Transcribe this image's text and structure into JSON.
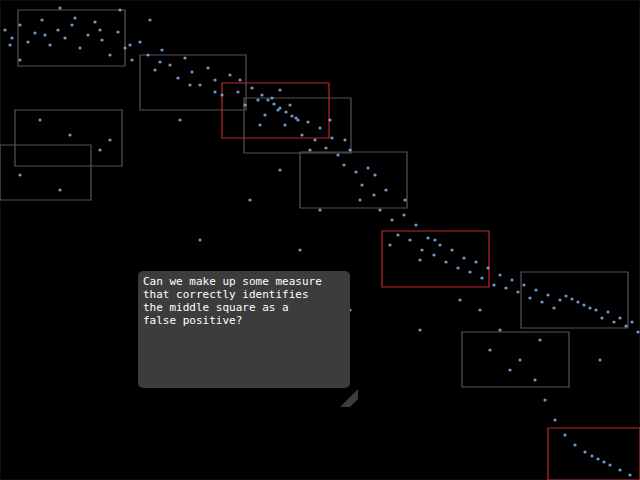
{
  "chart_data": {
    "type": "scatter",
    "annotation": [
      "Can we make up some measure",
      "that correctly identifies",
      "the middle square as a",
      "false positive?"
    ],
    "xlim": [
      0,
      640
    ],
    "ylim": [
      0,
      480
    ],
    "tick_labels": false,
    "grid": false,
    "color": "#7fb4ee",
    "marker": "circle",
    "points": [
      [
        5,
        30
      ],
      [
        12,
        38
      ],
      [
        20,
        25
      ],
      [
        28,
        42
      ],
      [
        35,
        33
      ],
      [
        42,
        20
      ],
      [
        50,
        45
      ],
      [
        58,
        30
      ],
      [
        65,
        38
      ],
      [
        72,
        25
      ],
      [
        80,
        48
      ],
      [
        88,
        35
      ],
      [
        95,
        22
      ],
      [
        102,
        40
      ],
      [
        110,
        55
      ],
      [
        118,
        32
      ],
      [
        125,
        48
      ],
      [
        132,
        60
      ],
      [
        140,
        42
      ],
      [
        148,
        55
      ],
      [
        155,
        70
      ],
      [
        162,
        50
      ],
      [
        170,
        65
      ],
      [
        178,
        78
      ],
      [
        185,
        58
      ],
      [
        192,
        72
      ],
      [
        200,
        85
      ],
      [
        208,
        68
      ],
      [
        215,
        80
      ],
      [
        222,
        95
      ],
      [
        230,
        75
      ],
      [
        238,
        92
      ],
      [
        245,
        105
      ],
      [
        252,
        88
      ],
      [
        258,
        100
      ],
      [
        265,
        115
      ],
      [
        272,
        98
      ],
      [
        278,
        110
      ],
      [
        285,
        125
      ],
      [
        290,
        105
      ],
      [
        296,
        118
      ],
      [
        302,
        135
      ],
      [
        308,
        122
      ],
      [
        315,
        140
      ],
      [
        320,
        128
      ],
      [
        326,
        148
      ],
      [
        332,
        138
      ],
      [
        338,
        155
      ],
      [
        344,
        165
      ],
      [
        350,
        150
      ],
      [
        356,
        172
      ],
      [
        362,
        185
      ],
      [
        368,
        168
      ],
      [
        374,
        195
      ],
      [
        380,
        210
      ],
      [
        386,
        190
      ],
      [
        392,
        220
      ],
      [
        398,
        235
      ],
      [
        404,
        215
      ],
      [
        410,
        240
      ],
      [
        416,
        225
      ],
      [
        422,
        250
      ],
      [
        428,
        238
      ],
      [
        434,
        255
      ],
      [
        440,
        245
      ],
      [
        446,
        262
      ],
      [
        452,
        250
      ],
      [
        458,
        268
      ],
      [
        464,
        258
      ],
      [
        470,
        272
      ],
      [
        476,
        262
      ],
      [
        482,
        278
      ],
      [
        488,
        268
      ],
      [
        494,
        285
      ],
      [
        500,
        275
      ],
      [
        506,
        288
      ],
      [
        512,
        280
      ],
      [
        518,
        292
      ],
      [
        524,
        285
      ],
      [
        530,
        298
      ],
      [
        536,
        290
      ],
      [
        542,
        302
      ],
      [
        548,
        295
      ],
      [
        554,
        308
      ],
      [
        560,
        300
      ],
      [
        566,
        296
      ],
      [
        572,
        299
      ],
      [
        578,
        302
      ],
      [
        584,
        305
      ],
      [
        590,
        308
      ],
      [
        596,
        310
      ],
      [
        602,
        318
      ],
      [
        608,
        312
      ],
      [
        614,
        322
      ],
      [
        620,
        318
      ],
      [
        626,
        326
      ],
      [
        632,
        322
      ],
      [
        638,
        332
      ],
      [
        10,
        45
      ],
      [
        45,
        35
      ],
      [
        75,
        18
      ],
      [
        100,
        30
      ],
      [
        130,
        45
      ],
      [
        160,
        62
      ],
      [
        190,
        85
      ],
      [
        215,
        92
      ],
      [
        240,
        80
      ],
      [
        260,
        125
      ],
      [
        280,
        90
      ],
      [
        310,
        150
      ],
      [
        330,
        120
      ],
      [
        345,
        140
      ],
      [
        360,
        200
      ],
      [
        375,
        175
      ],
      [
        390,
        245
      ],
      [
        405,
        200
      ],
      [
        420,
        260
      ],
      [
        435,
        240
      ],
      [
        262,
        95
      ],
      [
        268,
        100
      ],
      [
        274,
        104
      ],
      [
        280,
        108
      ],
      [
        286,
        112
      ],
      [
        292,
        116
      ],
      [
        298,
        120
      ],
      [
        480,
        310
      ],
      [
        500,
        330
      ],
      [
        520,
        360
      ],
      [
        535,
        380
      ],
      [
        545,
        400
      ],
      [
        555,
        420
      ],
      [
        565,
        435
      ],
      [
        575,
        445
      ],
      [
        585,
        452
      ],
      [
        592,
        456
      ],
      [
        598,
        459
      ],
      [
        604,
        462
      ],
      [
        610,
        465
      ],
      [
        620,
        470
      ],
      [
        630,
        475
      ],
      [
        40,
        120
      ],
      [
        70,
        135
      ],
      [
        100,
        150
      ],
      [
        20,
        175
      ],
      [
        60,
        190
      ],
      [
        110,
        140
      ],
      [
        200,
        240
      ],
      [
        250,
        200
      ],
      [
        350,
        310
      ],
      [
        420,
        330
      ],
      [
        490,
        350
      ],
      [
        510,
        370
      ],
      [
        300,
        250
      ],
      [
        180,
        120
      ],
      [
        150,
        20
      ],
      [
        20,
        60
      ],
      [
        120,
        10
      ],
      [
        60,
        8
      ],
      [
        280,
        170
      ],
      [
        320,
        210
      ],
      [
        460,
        300
      ],
      [
        540,
        340
      ],
      [
        600,
        360
      ]
    ],
    "boxes": [
      {
        "x0": 18,
        "y0": 10,
        "x1": 125,
        "y1": 66,
        "color": "#555555"
      },
      {
        "x0": 140,
        "y0": 55,
        "x1": 246,
        "y1": 110,
        "color": "#555555"
      },
      {
        "x0": 222,
        "y0": 83,
        "x1": 329,
        "y1": 138,
        "color": "#c0272d"
      },
      {
        "x0": 244,
        "y0": 98,
        "x1": 351,
        "y1": 153,
        "color": "#555555"
      },
      {
        "x0": 300,
        "y0": 152,
        "x1": 407,
        "y1": 208,
        "color": "#555555"
      },
      {
        "x0": 15,
        "y0": 110,
        "x1": 122,
        "y1": 166,
        "color": "#555555"
      },
      {
        "x0": 0,
        "y0": 145,
        "x1": 91,
        "y1": 200,
        "color": "#555555"
      },
      {
        "x0": 382,
        "y0": 231,
        "x1": 489,
        "y1": 287,
        "color": "#c0272d"
      },
      {
        "x0": 521,
        "y0": 272,
        "x1": 628,
        "y1": 328,
        "color": "#555555"
      },
      {
        "x0": 462,
        "y0": 332,
        "x1": 569,
        "y1": 387,
        "color": "#555555"
      },
      {
        "x0": 548,
        "y0": 428,
        "x1": 640,
        "y1": 480,
        "color": "#c0272d"
      }
    ]
  }
}
